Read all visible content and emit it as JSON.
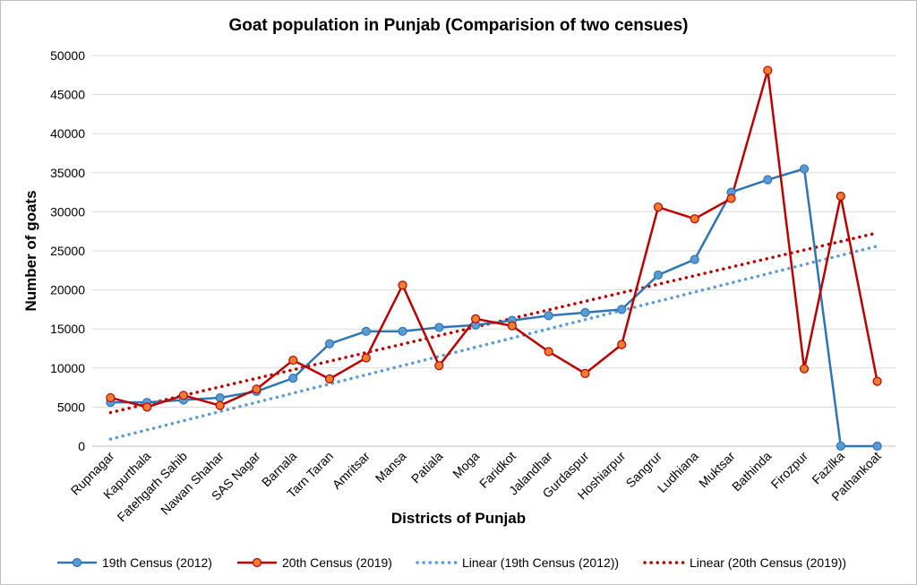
{
  "chart_data": {
    "type": "line",
    "title": "Goat population in Punjab (Comparision of two censues)",
    "xlabel": "Districts of Punjab",
    "ylabel": "Number of goats",
    "ylim": [
      0,
      50000
    ],
    "yticks": [
      0,
      5000,
      10000,
      15000,
      20000,
      25000,
      30000,
      35000,
      40000,
      45000,
      50000
    ],
    "grid": "horizontal",
    "legend_position": "bottom",
    "categories": [
      "Rupnagar",
      "Kapurthala",
      "Fatehgarh Sahib",
      "Nawan Shahar",
      "SAS Nagar",
      "Barnala",
      "Tarn Taran",
      "Amritsar",
      "Mansa",
      "Patiala",
      "Moga",
      "Faridkot",
      "Jalandhar",
      "Gurdaspur",
      "Hoshiarpur",
      "Sangrur",
      "Ludhiana",
      "Muktsar",
      "Bathinda",
      "Firozpur",
      "Fazilka",
      "Pathankoat"
    ],
    "series": [
      {
        "name": "19th Census (2012)",
        "color": "#2e75b6",
        "values": [
          5600,
          5600,
          5900,
          6200,
          7000,
          8700,
          13100,
          14700,
          14700,
          15200,
          15500,
          16100,
          16700,
          17100,
          17500,
          21900,
          23900,
          32500,
          34100,
          35500,
          0,
          0
        ]
      },
      {
        "name": "20th Census (2019)",
        "color": "#c00000",
        "values": [
          6200,
          5000,
          6500,
          5200,
          7300,
          11000,
          8600,
          11300,
          20600,
          10300,
          16300,
          15400,
          12100,
          9300,
          13000,
          30600,
          29100,
          31700,
          48100,
          9900,
          32000,
          8300
        ]
      }
    ],
    "trendlines": [
      {
        "name": "Linear (19th Census (2012))",
        "color": "#5b9bd5",
        "start": 900,
        "end": 25600
      },
      {
        "name": "Linear (20th Census (2019))",
        "color": "#c00000",
        "start": 4300,
        "end": 27300
      }
    ]
  }
}
